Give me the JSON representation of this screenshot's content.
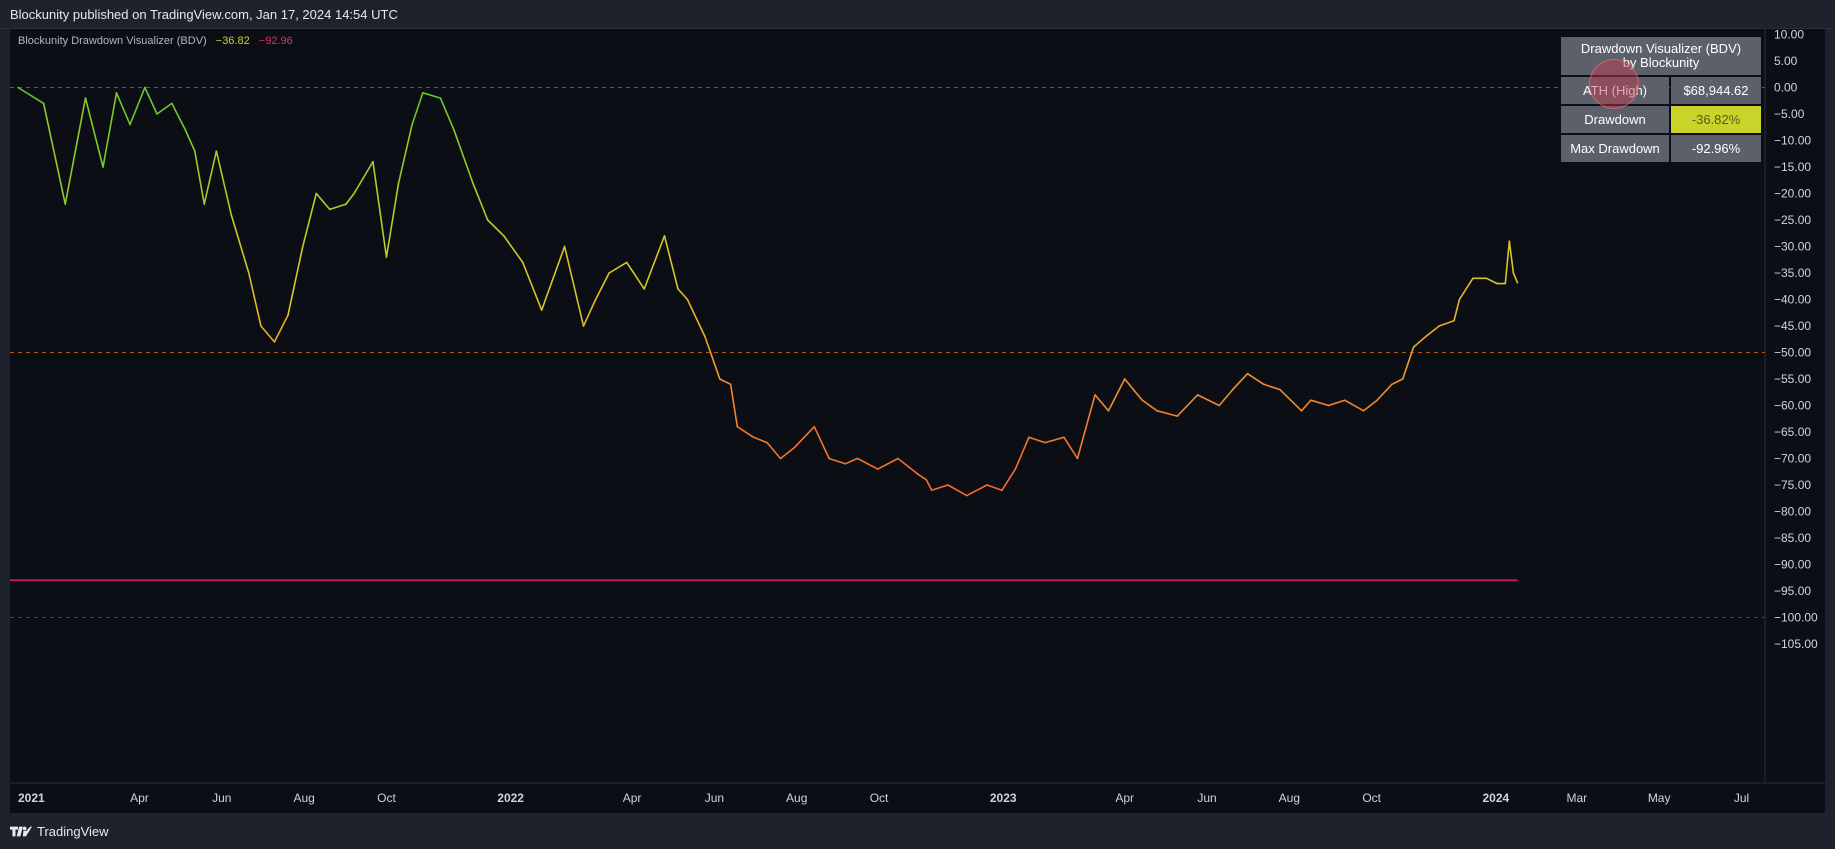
{
  "header": {
    "text": "Blockunity published on TradingView.com, Jan 17, 2024 14:54 UTC"
  },
  "indicator": {
    "label": "Blockunity Drawdown Visualizer (BDV)",
    "value1": "−36.82",
    "value2": "−92.96"
  },
  "table": {
    "title_line1": "Drawdown Visualizer (BDV)",
    "title_line2": "by Blockunity",
    "rows": [
      {
        "label": "ATH (High)",
        "value": "$68,944.62"
      },
      {
        "label": "Drawdown",
        "value": "-36.82%"
      },
      {
        "label": "Max Drawdown",
        "value": "-92.96%"
      }
    ]
  },
  "footer": {
    "brand": "TradingView"
  },
  "colors": {
    "background": "#0c0e15",
    "panel": "#1e222d",
    "zero_line": "#6b5a3a",
    "mid_line": "#b0571f",
    "max_drawdown_line": "#c2185b",
    "highlight": "#c8d42a"
  },
  "chart_data": {
    "type": "line",
    "title": "",
    "xlabel": "",
    "ylabel": "",
    "ylim": [
      -110,
      12
    ],
    "y_ticks": [
      "10.00",
      "5.00",
      "0.00",
      "−5.00",
      "−10.00",
      "−15.00",
      "−20.00",
      "−25.00",
      "−30.00",
      "−35.00",
      "−40.00",
      "−45.00",
      "−50.00",
      "−55.00",
      "−60.00",
      "−65.00",
      "−70.00",
      "−75.00",
      "−80.00",
      "−85.00",
      "−90.00",
      "−95.00",
      "−100.00",
      "−105.00"
    ],
    "y_tick_values": [
      10,
      5,
      0,
      -5,
      -10,
      -15,
      -20,
      -25,
      -30,
      -35,
      -40,
      -45,
      -50,
      -55,
      -60,
      -65,
      -70,
      -75,
      -80,
      -85,
      -90,
      -95,
      -100,
      -105
    ],
    "x_ticks": [
      {
        "label": "2021",
        "date": "2021-01-01",
        "bold": true
      },
      {
        "label": "Apr",
        "date": "2021-04-01"
      },
      {
        "label": "Jun",
        "date": "2021-06-01"
      },
      {
        "label": "Aug",
        "date": "2021-08-01"
      },
      {
        "label": "Oct",
        "date": "2021-10-01"
      },
      {
        "label": "2022",
        "date": "2022-01-01",
        "bold": true
      },
      {
        "label": "Apr",
        "date": "2022-04-01"
      },
      {
        "label": "Jun",
        "date": "2022-06-01"
      },
      {
        "label": "Aug",
        "date": "2022-08-01"
      },
      {
        "label": "Oct",
        "date": "2022-10-01"
      },
      {
        "label": "2023",
        "date": "2023-01-01",
        "bold": true
      },
      {
        "label": "Apr",
        "date": "2023-04-01"
      },
      {
        "label": "Jun",
        "date": "2023-06-01"
      },
      {
        "label": "Aug",
        "date": "2023-08-01"
      },
      {
        "label": "Oct",
        "date": "2023-10-01"
      },
      {
        "label": "2024",
        "date": "2024-01-01",
        "bold": true
      },
      {
        "label": "Mar",
        "date": "2024-03-01"
      },
      {
        "label": "May",
        "date": "2024-05-01"
      },
      {
        "label": "Jul",
        "date": "2024-07-01"
      }
    ],
    "xlim": [
      "2021-01-01",
      "2024-08-01"
    ],
    "reference_lines": [
      {
        "value": 0,
        "style": "dashed"
      },
      {
        "value": -50,
        "style": "dashed"
      },
      {
        "value": -100,
        "style": "dashed"
      }
    ],
    "max_drawdown": {
      "value": -92.96,
      "end": "2024-01-17"
    },
    "series": [
      {
        "x": [
          "2021-01-01",
          "2021-01-20",
          "2021-02-05",
          "2021-02-20",
          "2021-03-05",
          "2021-03-15",
          "2021-03-25",
          "2021-04-05",
          "2021-04-14",
          "2021-04-25",
          "2021-05-05",
          "2021-05-12",
          "2021-05-19",
          "2021-05-28",
          "2021-06-08",
          "2021-06-21",
          "2021-06-30",
          "2021-07-10",
          "2021-07-20",
          "2021-07-31",
          "2021-08-10",
          "2021-08-20",
          "2021-09-01",
          "2021-09-07",
          "2021-09-21",
          "2021-10-01",
          "2021-10-10",
          "2021-10-20",
          "2021-10-28",
          "2021-11-10",
          "2021-11-20",
          "2021-12-04",
          "2021-12-15",
          "2021-12-27",
          "2022-01-10",
          "2022-01-24",
          "2022-02-10",
          "2022-02-24",
          "2022-03-05",
          "2022-03-15",
          "2022-03-28",
          "2022-04-10",
          "2022-04-25",
          "2022-05-05",
          "2022-05-12",
          "2022-05-25",
          "2022-06-05",
          "2022-06-13",
          "2022-06-18",
          "2022-06-30",
          "2022-07-10",
          "2022-07-20",
          "2022-07-30",
          "2022-08-14",
          "2022-08-25",
          "2022-09-06",
          "2022-09-15",
          "2022-09-30",
          "2022-10-15",
          "2022-10-30",
          "2022-11-05",
          "2022-11-09",
          "2022-11-21",
          "2022-12-05",
          "2022-12-20",
          "2022-12-31",
          "2023-01-10",
          "2023-01-20",
          "2023-02-01",
          "2023-02-15",
          "2023-02-25",
          "2023-03-10",
          "2023-03-20",
          "2023-04-01",
          "2023-04-14",
          "2023-04-25",
          "2023-05-10",
          "2023-05-25",
          "2023-06-10",
          "2023-06-20",
          "2023-07-01",
          "2023-07-13",
          "2023-07-25",
          "2023-08-10",
          "2023-08-17",
          "2023-08-30",
          "2023-09-11",
          "2023-09-25",
          "2023-10-05",
          "2023-10-16",
          "2023-10-24",
          "2023-11-01",
          "2023-11-10",
          "2023-11-20",
          "2023-12-01",
          "2023-12-05",
          "2023-12-15",
          "2023-12-25",
          "2024-01-02",
          "2024-01-08",
          "2024-01-11",
          "2024-01-14",
          "2024-01-17"
        ],
        "values": [
          0,
          -3,
          -22,
          -2,
          -15,
          -1,
          -7,
          0,
          -5,
          -3,
          -8,
          -12,
          -22,
          -12,
          -24,
          -35,
          -45,
          -48,
          -43,
          -30,
          -20,
          -23,
          -22,
          -20,
          -14,
          -32,
          -18,
          -7,
          -1,
          -2,
          -8,
          -18,
          -25,
          -28,
          -33,
          -42,
          -30,
          -45,
          -40,
          -35,
          -33,
          -38,
          -28,
          -38,
          -40,
          -47,
          -55,
          -56,
          -64,
          -66,
          -67,
          -70,
          -68,
          -64,
          -70,
          -71,
          -70,
          -72,
          -70,
          -73,
          -74,
          -76,
          -75,
          -77,
          -75,
          -76,
          -72,
          -66,
          -67,
          -66,
          -70,
          -58,
          -61,
          -55,
          -59,
          -61,
          -62,
          -58,
          -60,
          -57,
          -54,
          -56,
          -57,
          -61,
          -59,
          -60,
          -59,
          -61,
          -59,
          -56,
          -55,
          -49,
          -47,
          -45,
          -44,
          -40,
          -36,
          -36,
          -37,
          -37,
          -29,
          -35,
          -36.82
        ]
      }
    ]
  }
}
